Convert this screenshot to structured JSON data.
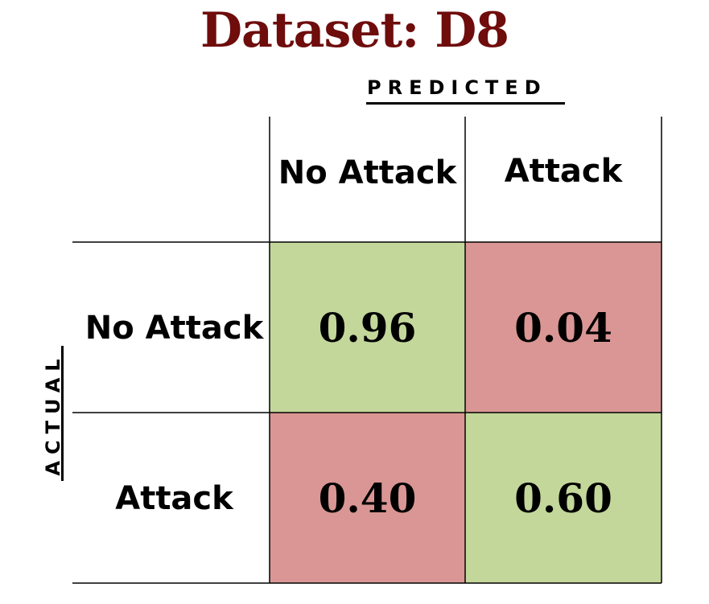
{
  "title": "Dataset: D8",
  "colors": {
    "title": "#6f0c0c",
    "correct_cell": "#c4d79b",
    "incorrect_cell": "#da9694",
    "grid": "#000000"
  },
  "axes": {
    "predicted_label": "Predicted",
    "actual_label": "Actual"
  },
  "chart_data": {
    "type": "heatmap",
    "title": "Dataset: D8",
    "xlabel": "Predicted",
    "ylabel": "Actual",
    "x_categories": [
      "No Attack",
      "Attack"
    ],
    "y_categories": [
      "No Attack",
      "Attack"
    ],
    "values": [
      [
        0.96,
        0.04
      ],
      [
        0.4,
        0.6
      ]
    ],
    "value_labels": [
      [
        "0.96",
        "0.04"
      ],
      [
        "0.40",
        "0.60"
      ]
    ]
  }
}
